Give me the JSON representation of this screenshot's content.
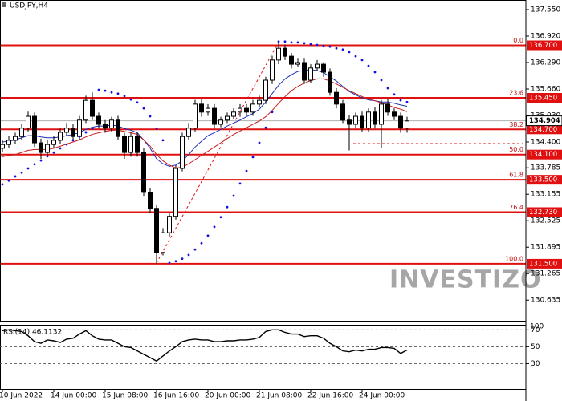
{
  "chart_data": [
    {
      "type": "candlestick",
      "title": "USDJPY,H4",
      "watermark": "INVESTIZO",
      "categories": [
        "10 Jun 2022",
        null,
        null,
        null,
        null,
        null,
        null,
        null,
        "14 Jun 00:00",
        null,
        null,
        null,
        null,
        null,
        null,
        null,
        "15 Jun 08:00",
        null,
        null,
        null,
        null,
        null,
        null,
        null,
        "16 Jun 16:00",
        null,
        null,
        null,
        null,
        null,
        null,
        null,
        "20 Jun 00:00",
        null,
        null,
        null,
        null,
        null,
        null,
        null,
        "21 Jun 08:00",
        null,
        null,
        null,
        null,
        null,
        null,
        null,
        "22 Jun 16:00",
        null,
        null,
        null,
        null,
        null,
        null,
        null,
        "24 Jun 00:00",
        null,
        null,
        null,
        null,
        null,
        null,
        null
      ],
      "open": [
        134.25,
        134.34,
        134.44,
        134.53,
        134.73,
        135.01,
        134.38,
        134.15,
        134.34,
        134.44,
        134.63,
        134.73,
        134.53,
        134.92,
        135.39,
        135.01,
        134.82,
        134.73,
        134.92,
        134.53,
        134.15,
        134.53,
        134.15,
        133.2,
        132.82,
        131.77,
        132.24,
        132.63,
        133.77,
        134.53,
        134.73,
        135.3,
        135.11,
        135.2,
        134.82,
        134.92,
        135.01,
        135.11,
        135.2,
        135.11,
        135.3,
        135.39,
        135.87,
        136.35,
        136.63,
        136.44,
        136.25,
        136.29,
        135.87,
        136.16,
        136.25,
        136.06,
        135.58,
        135.3,
        134.92,
        134.82,
        135.01,
        134.73,
        135.11,
        134.82,
        135.3,
        135.11,
        135.01,
        134.73
      ],
      "high": [
        134.45,
        134.55,
        134.62,
        134.82,
        135.12,
        135.1,
        134.48,
        134.45,
        134.55,
        134.72,
        134.85,
        134.82,
        135.02,
        135.5,
        135.58,
        135.1,
        134.92,
        135.0,
        135.02,
        134.62,
        134.62,
        134.62,
        134.25,
        133.3,
        132.9,
        132.35,
        132.72,
        133.85,
        134.62,
        134.85,
        135.4,
        135.42,
        135.3,
        135.3,
        135.0,
        135.1,
        135.2,
        135.3,
        135.3,
        135.4,
        135.5,
        135.95,
        136.45,
        136.78,
        136.72,
        136.52,
        136.4,
        136.4,
        136.25,
        136.35,
        136.3,
        136.15,
        135.68,
        135.4,
        135.05,
        135.1,
        135.12,
        135.2,
        135.22,
        135.4,
        135.42,
        135.2,
        135.1,
        135.0
      ],
      "low": [
        134.15,
        134.25,
        134.35,
        134.45,
        134.65,
        134.28,
        134.0,
        134.05,
        134.25,
        134.35,
        134.55,
        134.45,
        134.45,
        134.85,
        134.92,
        134.72,
        134.62,
        134.65,
        134.45,
        134.0,
        134.05,
        134.05,
        133.1,
        132.7,
        131.5,
        131.7,
        132.15,
        132.55,
        133.7,
        134.45,
        134.65,
        135.0,
        135.02,
        134.72,
        134.75,
        134.85,
        134.95,
        135.0,
        135.02,
        135.02,
        135.22,
        135.3,
        135.78,
        136.25,
        136.35,
        136.15,
        136.18,
        135.78,
        135.8,
        136.08,
        135.95,
        135.5,
        135.2,
        134.85,
        134.2,
        134.72,
        134.65,
        134.65,
        134.72,
        134.25,
        135.02,
        134.92,
        134.62,
        134.62
      ],
      "close": [
        134.34,
        134.44,
        134.53,
        134.73,
        135.01,
        134.38,
        134.15,
        134.34,
        134.44,
        134.63,
        134.73,
        134.53,
        134.92,
        135.39,
        135.01,
        134.82,
        134.73,
        134.92,
        134.53,
        134.15,
        134.53,
        134.15,
        133.2,
        132.82,
        131.77,
        132.24,
        132.63,
        133.77,
        134.53,
        134.73,
        135.3,
        135.11,
        135.2,
        134.82,
        134.92,
        135.01,
        135.11,
        135.2,
        135.11,
        135.3,
        135.39,
        135.87,
        136.35,
        136.63,
        136.44,
        136.25,
        136.29,
        135.87,
        136.16,
        136.25,
        136.06,
        135.58,
        135.3,
        134.92,
        134.82,
        135.01,
        134.73,
        135.11,
        134.82,
        135.3,
        135.11,
        135.01,
        134.73,
        134.9
      ],
      "up_color": "#ffffff",
      "down_color": "#000000",
      "moving_averages": [
        {
          "color": "#1c2fb8",
          "values": [
            134.4,
            134.42,
            134.45,
            134.5,
            134.55,
            134.55,
            134.52,
            134.5,
            134.5,
            134.52,
            134.55,
            134.58,
            134.62,
            134.7,
            134.75,
            134.78,
            134.78,
            134.8,
            134.78,
            134.72,
            134.68,
            134.62,
            134.45,
            134.25,
            134.0,
            133.88,
            133.82,
            133.85,
            133.95,
            134.1,
            134.28,
            134.42,
            134.55,
            134.62,
            134.7,
            134.78,
            134.85,
            134.92,
            135.0,
            135.08,
            135.18,
            135.35,
            135.55,
            135.75,
            135.9,
            136.0,
            136.08,
            136.1,
            136.12,
            136.1,
            136.05,
            135.95,
            135.85,
            135.72,
            135.6,
            135.52,
            135.45,
            135.4,
            135.38,
            135.35,
            135.35,
            135.32,
            135.28,
            135.25
          ]
        },
        {
          "color": "#c81e1e",
          "values": [
            134.05,
            134.08,
            134.1,
            134.15,
            134.2,
            134.22,
            134.22,
            134.22,
            134.25,
            134.3,
            134.35,
            134.4,
            134.45,
            134.52,
            134.58,
            134.62,
            134.65,
            134.68,
            134.68,
            134.65,
            134.62,
            134.58,
            134.45,
            134.3,
            134.1,
            133.95,
            133.85,
            133.78,
            133.8,
            133.88,
            133.98,
            134.08,
            134.18,
            134.28,
            134.38,
            134.48,
            134.58,
            134.66,
            134.74,
            134.82,
            134.9,
            135.0,
            135.15,
            135.32,
            135.48,
            135.62,
            135.72,
            135.8,
            135.86,
            135.9,
            135.9,
            135.85,
            135.78,
            135.7,
            135.62,
            135.55,
            135.48,
            135.42,
            135.38,
            135.33,
            135.28,
            135.22,
            135.18,
            135.12
          ]
        }
      ],
      "sar": {
        "color": "#1010e0",
        "values": [
          133.39,
          133.48,
          133.58,
          133.67,
          133.77,
          133.87,
          133.96,
          134.06,
          134.15,
          134.25,
          134.34,
          134.44,
          134.53,
          134.63,
          134.72,
          135.64,
          135.62,
          135.58,
          135.55,
          135.49,
          135.41,
          135.34,
          135.2,
          135.01,
          134.72,
          134.44,
          131.52,
          131.56,
          131.62,
          131.71,
          131.84,
          131.99,
          132.17,
          132.38,
          132.61,
          132.85,
          133.12,
          133.41,
          133.71,
          134.04,
          134.38,
          134.74,
          135.11,
          136.79,
          136.79,
          136.77,
          136.77,
          136.75,
          136.73,
          136.71,
          136.69,
          136.67,
          136.63,
          136.6,
          136.54,
          136.44,
          136.35,
          136.21,
          136.06,
          135.87,
          135.68,
          135.53,
          135.39,
          135.35
        ]
      },
      "levels": [
        {
          "value": 136.7,
          "label": "136.700",
          "fib": "0.0"
        },
        {
          "value": 135.45,
          "label": "135.450",
          "fib": "23.6"
        },
        {
          "value": 134.7,
          "label": "134.700",
          "fib": "38.2"
        },
        {
          "value": 134.1,
          "label": "134.100",
          "fib": "50.0"
        },
        {
          "value": 133.5,
          "label": "133.500",
          "fib": "61.8"
        },
        {
          "value": 132.73,
          "label": "132.730",
          "fib": "76.4"
        },
        {
          "value": 131.5,
          "label": "131.500",
          "fib": "100.0"
        }
      ],
      "level_color": "#e01010",
      "current_price": 134.904,
      "ylim": [
        130.143,
        137.779
      ],
      "yticks": [
        {
          "value": 137.55,
          "label": "137.550"
        },
        {
          "value": 136.92,
          "label": "136.920"
        },
        {
          "value": 136.29,
          "label": "136.290"
        },
        {
          "value": 135.66,
          "label": "135.660"
        },
        {
          "value": 135.03,
          "label": "135.030"
        },
        {
          "value": 134.4,
          "label": "134.400"
        },
        133.785,
        133.155,
        132.525,
        131.895,
        131.265,
        130.635
      ]
    },
    {
      "type": "line",
      "title": "RSI(14) 46.1132",
      "color": "#000000",
      "values": [
        69,
        70,
        69,
        68,
        63,
        56,
        54,
        58,
        57,
        55,
        59,
        60,
        65,
        69,
        63,
        59,
        58,
        58,
        54,
        50,
        49,
        45,
        41,
        37,
        33,
        39,
        45,
        50,
        56,
        58,
        59,
        58,
        58,
        56,
        56,
        57,
        57,
        58,
        58,
        59,
        61,
        68,
        70,
        70,
        67,
        65,
        65,
        62,
        63,
        63,
        60,
        54,
        50,
        45,
        44,
        46,
        45,
        47,
        47,
        49,
        49,
        48,
        42,
        46.1132
      ],
      "ylim": [
        0,
        76
      ],
      "yticks": [
        70,
        50,
        30
      ],
      "top_label": "100",
      "grid": "dashed"
    }
  ]
}
